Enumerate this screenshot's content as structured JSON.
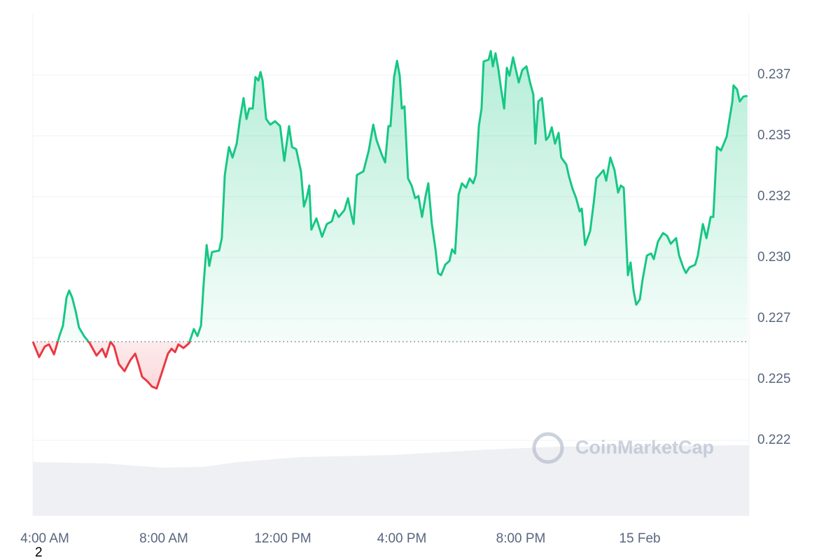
{
  "chart_data": {
    "type": "line",
    "watermark": "CoinMarketCap",
    "corner_note": "2",
    "up_color": "#16c784",
    "down_color": "#ea3943",
    "baseline": 0.22655,
    "grid": true,
    "xlim": [
      3.6,
      27.67
    ],
    "xticks": [
      {
        "value": 4,
        "label": "4:00 AM"
      },
      {
        "value": 8,
        "label": "8:00 AM"
      },
      {
        "value": 12,
        "label": "12:00 PM"
      },
      {
        "value": 16,
        "label": "4:00 PM"
      },
      {
        "value": 20,
        "label": "8:00 PM"
      },
      {
        "value": 24,
        "label": "15 Feb"
      }
    ],
    "ylim": [
      0.2194,
      0.24
    ],
    "yticks": [
      {
        "value": 0.2225,
        "label": "0.222"
      },
      0.225,
      {
        "value": 0.2275,
        "label": "0.227"
      },
      {
        "value": 0.23,
        "label": "0.230"
      },
      {
        "value": 0.2325,
        "label": "0.232"
      },
      0.235,
      {
        "value": 0.2375,
        "label": "0.237"
      }
    ],
    "x": [
      3.6,
      3.81,
      4.0,
      4.14,
      4.31,
      4.49,
      4.61,
      4.73,
      4.82,
      4.92,
      5.04,
      5.15,
      5.32,
      5.51,
      5.74,
      5.93,
      6.05,
      6.21,
      6.33,
      6.49,
      6.68,
      6.87,
      7.04,
      7.15,
      7.27,
      7.46,
      7.6,
      7.76,
      7.95,
      8.14,
      8.26,
      8.38,
      8.49,
      8.66,
      8.85,
      9.01,
      9.13,
      9.25,
      9.34,
      9.44,
      9.53,
      9.62,
      9.86,
      9.95,
      10.05,
      10.19,
      10.31,
      10.45,
      10.56,
      10.68,
      10.78,
      10.87,
      10.99,
      11.08,
      11.18,
      11.25,
      11.32,
      11.44,
      11.58,
      11.74,
      11.91,
      12.05,
      12.21,
      12.31,
      12.45,
      12.61,
      12.71,
      12.8,
      12.89,
      12.96,
      13.13,
      13.32,
      13.48,
      13.65,
      13.76,
      13.88,
      14.07,
      14.19,
      14.31,
      14.38,
      14.49,
      14.71,
      14.89,
      15.04,
      15.15,
      15.32,
      15.44,
      15.55,
      15.62,
      15.74,
      15.84,
      15.93,
      16.0,
      16.09,
      16.21,
      16.33,
      16.45,
      16.56,
      16.68,
      16.8,
      16.89,
      17.01,
      17.13,
      17.22,
      17.32,
      17.46,
      17.6,
      17.69,
      17.79,
      17.91,
      18.02,
      18.16,
      18.28,
      18.4,
      18.49,
      18.59,
      18.68,
      18.75,
      18.92,
      18.99,
      19.06,
      19.15,
      19.25,
      19.34,
      19.44,
      19.53,
      19.62,
      19.74,
      19.93,
      20.05,
      20.19,
      20.31,
      20.42,
      20.49,
      20.59,
      20.71,
      20.85,
      20.94,
      21.04,
      21.15,
      21.27,
      21.36,
      21.53,
      21.62,
      21.74,
      21.86,
      21.98,
      22.05,
      22.16,
      22.33,
      22.45,
      22.54,
      22.78,
      22.87,
      23.01,
      23.15,
      23.27,
      23.36,
      23.46,
      23.6,
      23.69,
      23.79,
      23.88,
      24.0,
      24.09,
      24.24,
      24.38,
      24.47,
      24.61,
      24.78,
      24.92,
      25.04,
      25.22,
      25.32,
      25.46,
      25.55,
      25.67,
      25.86,
      25.95,
      26.12,
      26.24,
      26.38,
      26.47,
      26.59,
      26.73,
      26.92,
      27.11,
      27.15,
      27.27,
      27.36,
      27.48,
      27.62
    ],
    "values": [
      0.22655,
      0.22592,
      0.22635,
      0.22644,
      0.22603,
      0.22678,
      0.22721,
      0.22836,
      0.22865,
      0.22836,
      0.22779,
      0.22713,
      0.22678,
      0.22649,
      0.22598,
      0.22626,
      0.22592,
      0.22655,
      0.22635,
      0.22563,
      0.22534,
      0.22578,
      0.22606,
      0.22563,
      0.22511,
      0.22491,
      0.22471,
      0.22463,
      0.22534,
      0.22606,
      0.22626,
      0.22612,
      0.22644,
      0.22629,
      0.22649,
      0.22707,
      0.22678,
      0.22721,
      0.22894,
      0.23052,
      0.22966,
      0.23023,
      0.23029,
      0.2308,
      0.23339,
      0.23454,
      0.23411,
      0.23468,
      0.23569,
      0.23655,
      0.23569,
      0.23612,
      0.23612,
      0.23741,
      0.23727,
      0.23762,
      0.23727,
      0.23569,
      0.23546,
      0.2356,
      0.2354,
      0.23397,
      0.2354,
      0.23454,
      0.23445,
      0.23354,
      0.2321,
      0.23244,
      0.23296,
      0.23115,
      0.23161,
      0.23086,
      0.23138,
      0.23149,
      0.23195,
      0.23167,
      0.23195,
      0.23244,
      0.23172,
      0.23138,
      0.23339,
      0.23354,
      0.2344,
      0.23546,
      0.23483,
      0.23425,
      0.23391,
      0.2354,
      0.2354,
      0.23741,
      0.23808,
      0.23747,
      0.23612,
      0.23621,
      0.23325,
      0.23296,
      0.23244,
      0.23253,
      0.23167,
      0.23253,
      0.23305,
      0.23138,
      0.23037,
      0.22937,
      0.22928,
      0.22971,
      0.22986,
      0.23034,
      0.23017,
      0.23259,
      0.23305,
      0.23287,
      0.23325,
      0.23305,
      0.23339,
      0.2354,
      0.23612,
      0.23805,
      0.23813,
      0.23848,
      0.23785,
      0.23839,
      0.2377,
      0.2369,
      0.23612,
      0.23779,
      0.23747,
      0.23822,
      0.23719,
      0.2377,
      0.23785,
      0.23719,
      0.2367,
      0.23468,
      0.23641,
      0.23655,
      0.23483,
      0.23497,
      0.23535,
      0.23468,
      0.23512,
      0.23411,
      0.23382,
      0.23333,
      0.23282,
      0.23244,
      0.2319,
      0.23201,
      0.23052,
      0.23109,
      0.23224,
      0.23325,
      0.23359,
      0.23316,
      0.23411,
      0.23359,
      0.23267,
      0.23296,
      0.23287,
      0.22928,
      0.2298,
      0.22865,
      0.22807,
      0.22828,
      0.22908,
      0.23009,
      0.23017,
      0.22994,
      0.23066,
      0.23101,
      0.23089,
      0.23057,
      0.2308,
      0.23009,
      0.2296,
      0.22937,
      0.2296,
      0.22971,
      0.23009,
      0.23138,
      0.2308,
      0.23167,
      0.23167,
      0.23454,
      0.2344,
      0.23497,
      0.23641,
      0.23707,
      0.2369,
      0.23641,
      0.23661,
      0.23664
    ]
  }
}
